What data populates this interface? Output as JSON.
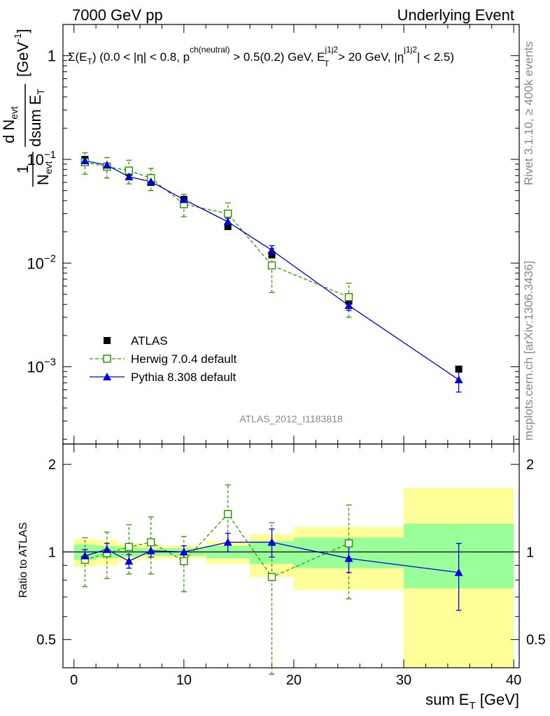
{
  "header": {
    "left": "7000 GeV pp",
    "right": "Underlying Event"
  },
  "side": {
    "rivet": "Rivet 3.1.10, ≥ 400k events",
    "mcplots": "mcplots.cern.ch [arXiv:1306.3436]"
  },
  "analysis_id": "ATLAS_2012_I1183818",
  "cuts_label": {
    "t1": "Σ(E",
    "t2": "T",
    "t3": ") (0.0 < |η| < 0.8, p",
    "t4": "ch(neutral)",
    "t5": " > 0.5(0.2) GeV, E",
    "t6": "j1j2",
    "t7": "T",
    "t8": " > 20 GeV, |η",
    "t9": "j1j2",
    "t10": "| < 2.5)"
  },
  "ylabel_main": {
    "one": "1",
    "nevt": "N",
    "evt_sub": "evt",
    "dN": "d N",
    "dN_sub": "evt",
    "dsum": "dsum E",
    "dsum_sub": "T",
    "units": "[GeV",
    "units_exp": "-1",
    "units_close": "]"
  },
  "ylabel_ratio": "Ratio to ATLAS",
  "xlabel": {
    "main": "sum E",
    "sub": "T",
    "units": " [GeV]"
  },
  "colors": {
    "data": "#000000",
    "herwig": "#339900",
    "pythia": "#0000dd",
    "band_inner": "#99ff99",
    "band_outer": "#ffff99"
  },
  "chart_data": [
    {
      "type": "scatter",
      "panel": "main",
      "x_range": [
        -1,
        40.5
      ],
      "y_range": [
        0.00018,
        2.0
      ],
      "y_scale": "log",
      "x_ticks": [
        0,
        10,
        20,
        30,
        40
      ],
      "y_ticks": [
        {
          "value": 1,
          "label": "1"
        },
        {
          "value": 0.1,
          "label": "10",
          "exp": "−1"
        },
        {
          "value": 0.01,
          "label": "10",
          "exp": "−2"
        },
        {
          "value": 0.001,
          "label": "10",
          "exp": "−3"
        }
      ],
      "legend_position": "bottom-left",
      "series": [
        {
          "name": "ATLAS",
          "style": "data",
          "x": [
            1,
            3,
            5,
            7,
            10,
            14,
            18,
            25,
            35
          ],
          "y": [
            0.1,
            0.086,
            0.075,
            0.06,
            0.041,
            0.0225,
            0.012,
            0.0043,
            0.00095
          ]
        },
        {
          "name": "Herwig 7.0.4 default",
          "style": "herwig",
          "x": [
            1,
            3,
            5,
            7,
            10,
            14,
            18,
            25
          ],
          "y": [
            0.094,
            0.085,
            0.078,
            0.066,
            0.037,
            0.03,
            0.0095,
            0.0047
          ],
          "err": [
            0.022,
            0.019,
            0.02,
            0.016,
            0.009,
            0.008,
            0.0043,
            0.0017
          ]
        },
        {
          "name": "Pythia 8.308 default",
          "style": "pythia",
          "x": [
            1,
            3,
            5,
            7,
            10,
            14,
            18,
            25,
            35
          ],
          "y": [
            0.097,
            0.088,
            0.068,
            0.061,
            0.041,
            0.025,
            0.0133,
            0.0039,
            0.00075
          ],
          "err": [
            0.004,
            0.003,
            0.004,
            0.003,
            0.003,
            0.002,
            0.0014,
            0.0004,
            0.00018
          ]
        }
      ]
    },
    {
      "type": "scatter",
      "panel": "ratio",
      "x_range": [
        -1,
        40.5
      ],
      "y_range": [
        0.4,
        2.35
      ],
      "y_scale": "log",
      "x_ticks": [
        0,
        10,
        20,
        30,
        40
      ],
      "y_ticks": [
        {
          "value": 2,
          "label": "2"
        },
        {
          "value": 1,
          "label": "1"
        },
        {
          "value": 0.5,
          "label": "0.5"
        }
      ],
      "bands": [
        {
          "x0": 0,
          "x1": 2,
          "inner": [
            0.94,
            1.06
          ],
          "outer": [
            0.89,
            1.11
          ]
        },
        {
          "x0": 2,
          "x1": 4,
          "inner": [
            0.95,
            1.05
          ],
          "outer": [
            0.9,
            1.1
          ]
        },
        {
          "x0": 4,
          "x1": 6,
          "inner": [
            0.96,
            1.04
          ],
          "outer": [
            0.93,
            1.07
          ]
        },
        {
          "x0": 6,
          "x1": 8,
          "inner": [
            0.97,
            1.03
          ],
          "outer": [
            0.94,
            1.06
          ]
        },
        {
          "x0": 8,
          "x1": 12,
          "inner": [
            0.97,
            1.03
          ],
          "outer": [
            0.95,
            1.05
          ]
        },
        {
          "x0": 12,
          "x1": 16,
          "inner": [
            0.95,
            1.05
          ],
          "outer": [
            0.91,
            1.09
          ]
        },
        {
          "x0": 16,
          "x1": 20,
          "inner": [
            0.91,
            1.09
          ],
          "outer": [
            0.82,
            1.15
          ]
        },
        {
          "x0": 20,
          "x1": 30,
          "inner": [
            0.88,
            1.12
          ],
          "outer": [
            0.74,
            1.22
          ]
        },
        {
          "x0": 30,
          "x1": 40,
          "inner": [
            0.75,
            1.25
          ],
          "outer": [
            0.38,
            1.66
          ]
        }
      ],
      "series": [
        {
          "name": "Herwig 7.0.4 default",
          "style": "herwig",
          "x": [
            1,
            3,
            5,
            7,
            10,
            14,
            18,
            25
          ],
          "y": [
            0.94,
            0.99,
            1.04,
            1.08,
            0.93,
            1.35,
            0.82,
            1.07
          ],
          "err": [
            0.18,
            0.18,
            0.2,
            0.24,
            0.2,
            0.35,
            0.44,
            0.38
          ]
        },
        {
          "name": "Pythia 8.308 default",
          "style": "pythia",
          "x": [
            1,
            3,
            5,
            7,
            10,
            14,
            18,
            25,
            35
          ],
          "y": [
            0.97,
            1.02,
            0.93,
            1.01,
            1.0,
            1.08,
            1.08,
            0.95,
            0.85
          ],
          "err": [
            0.05,
            0.05,
            0.05,
            0.05,
            0.05,
            0.08,
            0.12,
            0.1,
            0.22
          ]
        }
      ]
    }
  ]
}
